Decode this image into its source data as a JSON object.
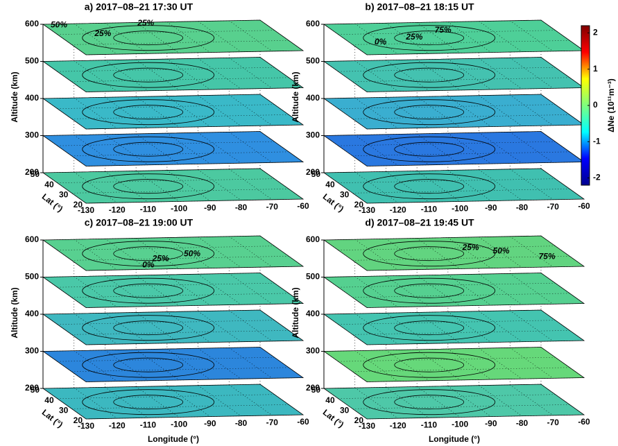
{
  "chart_data": [
    {
      "type": "stacked-slices",
      "title": "a) 2017–08–21 17:30 UT",
      "zlabel": "Altitude (km)",
      "ylabel": "Lat (°)",
      "xlim": [
        -130,
        -60
      ],
      "ylim": [
        20,
        50
      ],
      "zlim": [
        200,
        600
      ],
      "xticks": [
        -130,
        -120,
        -110,
        -100,
        -90,
        -80,
        -70,
        -60
      ],
      "yticks": [
        20,
        30,
        40,
        50
      ],
      "zticks": [
        200,
        300,
        400,
        500,
        600
      ],
      "slice_colors": [
        "#4cc9a0",
        "#2f8fe0",
        "#3ab9c8",
        "#45c6a8",
        "#58d08e"
      ],
      "annotations": [
        {
          "text": "50%",
          "lon": -128,
          "lat": 49
        },
        {
          "text": "25%",
          "lon": -118,
          "lat": 40
        },
        {
          "text": "25%",
          "lon": -100,
          "lat": 49
        }
      ]
    },
    {
      "type": "stacked-slices",
      "title": "b) 2017–08–21 18:15 UT",
      "zlabel": "Altitude (km)",
      "ylabel": "Lat (°)",
      "xlim": [
        -130,
        -60
      ],
      "ylim": [
        20,
        50
      ],
      "zlim": [
        200,
        600
      ],
      "xticks": [
        -130,
        -120,
        -110,
        -100,
        -90,
        -80,
        -70,
        -60
      ],
      "yticks": [
        20,
        30,
        40,
        50
      ],
      "zticks": [
        200,
        300,
        400,
        500,
        600
      ],
      "slice_colors": [
        "#40c0b0",
        "#2a78e0",
        "#3aaed0",
        "#44c2b0",
        "#4ecf98"
      ],
      "annotations": [
        {
          "text": "0%",
          "lon": -122,
          "lat": 32
        },
        {
          "text": "25%",
          "lon": -110,
          "lat": 36
        },
        {
          "text": "75%",
          "lon": -98,
          "lat": 42
        }
      ]
    },
    {
      "type": "stacked-slices",
      "title": "c) 2017–08–21 19:00 UT",
      "zlabel": "Altitude (km)",
      "ylabel": "Lat (°)",
      "xlabel": "Longitude (°)",
      "xlim": [
        -130,
        -60
      ],
      "ylim": [
        20,
        50
      ],
      "zlim": [
        200,
        600
      ],
      "xticks": [
        -130,
        -120,
        -110,
        -100,
        -90,
        -80,
        -70,
        -60
      ],
      "yticks": [
        20,
        30,
        40,
        50
      ],
      "zticks": [
        200,
        300,
        400,
        500,
        600
      ],
      "slice_colors": [
        "#3cb8c0",
        "#2c86dc",
        "#3fb8c0",
        "#4ac8a8",
        "#58d090"
      ],
      "annotations": [
        {
          "text": "25%",
          "lon": -104,
          "lat": 30
        },
        {
          "text": "50%",
          "lon": -92,
          "lat": 34
        },
        {
          "text": "0%",
          "lon": -110,
          "lat": 24
        }
      ]
    },
    {
      "type": "stacked-slices",
      "title": "d) 2017–08–21 19:45 UT",
      "zlabel": "Altitude (km)",
      "ylabel": "Lat (°)",
      "xlabel": "Longitude (°)",
      "xlim": [
        -130,
        -60
      ],
      "ylim": [
        20,
        50
      ],
      "zlim": [
        200,
        600
      ],
      "xticks": [
        -130,
        -120,
        -110,
        -100,
        -90,
        -80,
        -70,
        -60
      ],
      "yticks": [
        20,
        30,
        40,
        50
      ],
      "zticks": [
        200,
        300,
        400,
        500,
        600
      ],
      "slice_colors": [
        "#4ec8a8",
        "#66d87a",
        "#44c4b0",
        "#55d090",
        "#62d480"
      ],
      "annotations": [
        {
          "text": "25%",
          "lon": -90,
          "lat": 40
        },
        {
          "text": "50%",
          "lon": -82,
          "lat": 36
        },
        {
          "text": "75%",
          "lon": -70,
          "lat": 30
        }
      ]
    }
  ],
  "colorbar": {
    "label": "ΔNe (10¹¹m⁻³)",
    "lim": [
      -2.2,
      2.2
    ],
    "ticks": [
      -2,
      -1,
      0,
      1,
      2
    ],
    "colors": [
      "#00008f",
      "#0000ff",
      "#00ffff",
      "#7fff7f",
      "#ffff00",
      "#ff0000",
      "#800000"
    ]
  }
}
